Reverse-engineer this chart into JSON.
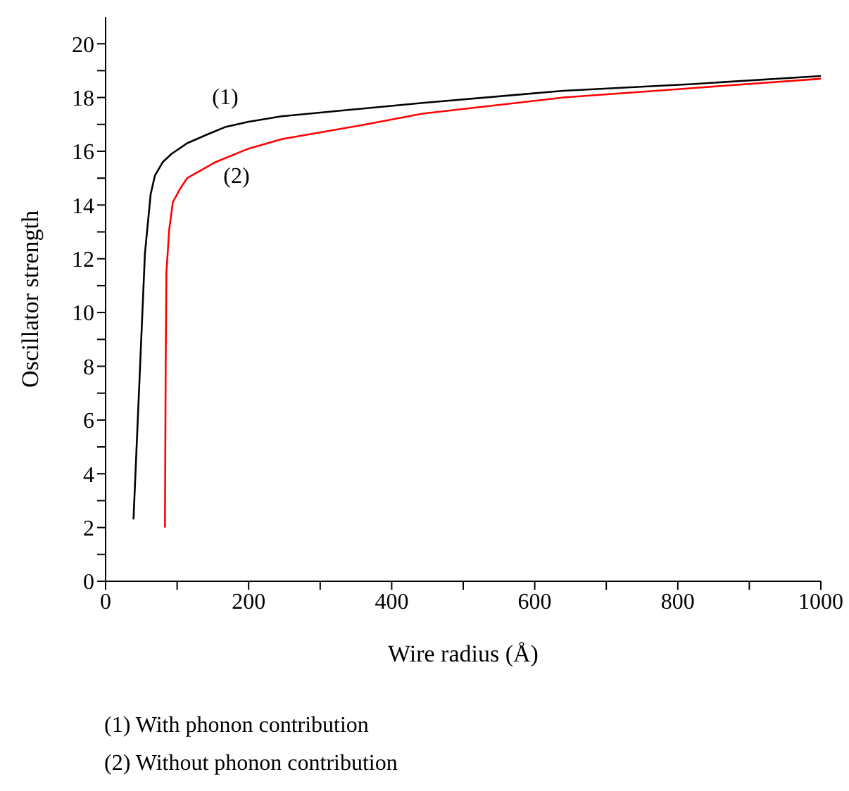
{
  "chart_data": {
    "type": "line",
    "xlabel": "Wire radius (Å)",
    "ylabel": "Oscillator strength",
    "xlim": [
      0,
      1000
    ],
    "xticks": [
      0,
      {
        "value": 100,
        "label": null
      },
      200,
      {
        "value": 300,
        "label": null
      },
      400,
      {
        "value": 500,
        "label": null
      },
      600,
      {
        "value": 700,
        "label": null
      },
      800,
      {
        "value": 900,
        "label": null
      },
      1000
    ],
    "ylim": [
      0,
      21
    ],
    "yticks": [
      0,
      {
        "value": 1,
        "label": null
      },
      2,
      {
        "value": 3,
        "label": null
      },
      4,
      {
        "value": 5,
        "label": null
      },
      6,
      {
        "value": 7,
        "label": null
      },
      8,
      {
        "value": 9,
        "label": null
      },
      10,
      {
        "value": 11,
        "label": null
      },
      12,
      {
        "value": 13,
        "label": null
      },
      14,
      {
        "value": 15,
        "label": null
      },
      16,
      {
        "value": 17,
        "label": null
      },
      18,
      {
        "value": 19,
        "label": null
      },
      20
    ],
    "grid": false,
    "legend": false,
    "marker": "none",
    "line_style": "solid",
    "series": [
      {
        "color": "#000000",
        "x": [
          39,
          55,
          63,
          69,
          80,
          92,
          114,
          140,
          167,
          200,
          246,
          443,
          640,
          820,
          1000
        ],
        "values": [
          2.3,
          12.2,
          14.4,
          15.1,
          15.6,
          15.9,
          16.3,
          16.6,
          16.9,
          17.1,
          17.3,
          17.8,
          18.25,
          18.5,
          18.8
        ]
      },
      {
        "color": "#ff0000",
        "x": [
          83,
          84,
          85,
          89,
          94,
          104,
          114,
          154,
          200,
          246,
          364,
          443,
          640,
          820,
          1000
        ],
        "values": [
          2.0,
          8.0,
          11.5,
          13.1,
          14.1,
          14.6,
          15.0,
          15.6,
          16.1,
          16.45,
          17.0,
          17.4,
          18.0,
          18.35,
          18.7
        ]
      }
    ],
    "annotations": [
      "(1)",
      "(2)",
      "(1) With phonon contribution",
      "(2) Without phonon contribution"
    ]
  }
}
